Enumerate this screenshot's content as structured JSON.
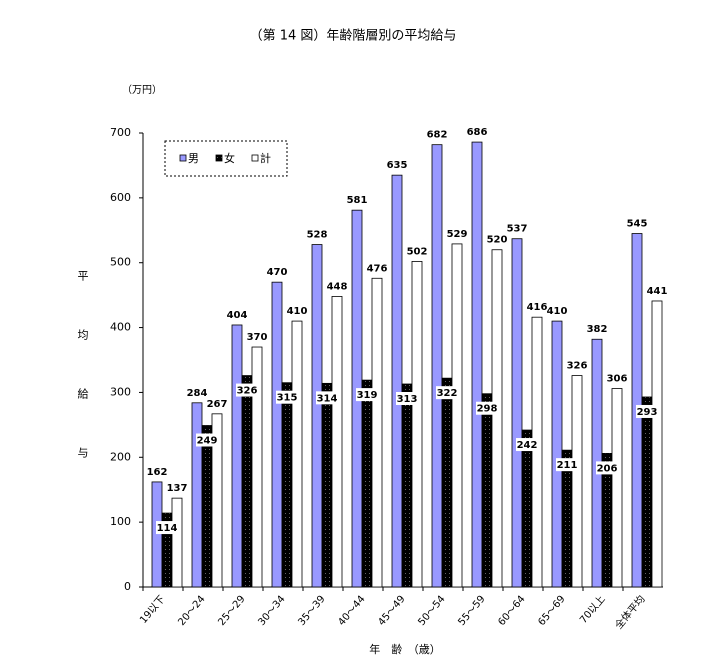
{
  "chart_data": {
    "type": "bar",
    "title": "（第 14 図）年齢階層別の平均給与",
    "y_unit": "（万円）",
    "y_label": "平均給与",
    "x_label": "年　齢　（歳）",
    "categories": [
      "19以下",
      "20～24",
      "25～29",
      "30～34",
      "35～39",
      "40～44",
      "45～49",
      "50～54",
      "55～59",
      "60～64",
      "65～69",
      "70以上",
      "全体平均"
    ],
    "series": [
      {
        "name": "男",
        "color": "#9999ff",
        "values": [
          162,
          284,
          404,
          470,
          528,
          581,
          635,
          682,
          686,
          537,
          410,
          382,
          545
        ]
      },
      {
        "name": "女",
        "color": "#000000",
        "values": [
          114,
          249,
          326,
          315,
          314,
          319,
          313,
          322,
          298,
          242,
          211,
          206,
          293
        ]
      },
      {
        "name": "計",
        "color": "#ffffff",
        "values": [
          137,
          267,
          370,
          410,
          448,
          476,
          502,
          529,
          520,
          416,
          326,
          306,
          441
        ]
      }
    ],
    "ylim": [
      0,
      700
    ],
    "yticks": [
      0,
      100,
      200,
      300,
      400,
      500,
      600,
      700
    ],
    "grid": false,
    "legend": "upper left"
  }
}
